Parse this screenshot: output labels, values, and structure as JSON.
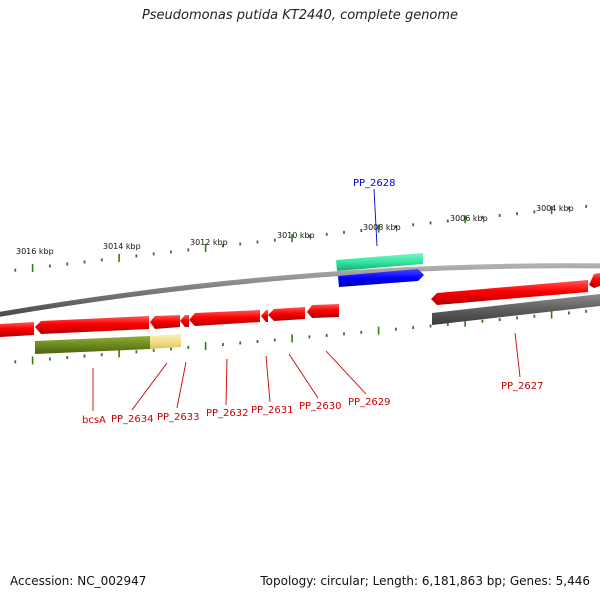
{
  "title": "Pseudomonas putida KT2440, complete genome",
  "footer": {
    "accession": "Accession: NC_002947",
    "summary": "Topology: circular; Length: 6,181,863 bp; Genes: 5,446"
  },
  "colors": {
    "backbone": "#7a7a7a",
    "gene": "#ff0000",
    "gene_label": "#cc0000",
    "highlight_label": "#0000cc",
    "highlight_gene": "#0000ff",
    "highlight_feature": "#33e6a0",
    "pseudo": "#5e5e5e",
    "olive_feature": "#6b8a1e",
    "pale_feature": "#f2e08a",
    "tick": "#2e7d1a",
    "scale_text": "#111111"
  },
  "scale_labels": [
    "3016 kbp",
    "3014 kbp",
    "3012 kbp",
    "3010 kbp",
    "3008 kbp",
    "3006 kbp",
    "3004 kbp"
  ],
  "gene_labels": [
    "PP_2628",
    "bcsA",
    "PP_2634",
    "PP_2633",
    "PP_2632",
    "PP_2631",
    "PP_2630",
    "PP_2629",
    "PP_2627"
  ]
}
